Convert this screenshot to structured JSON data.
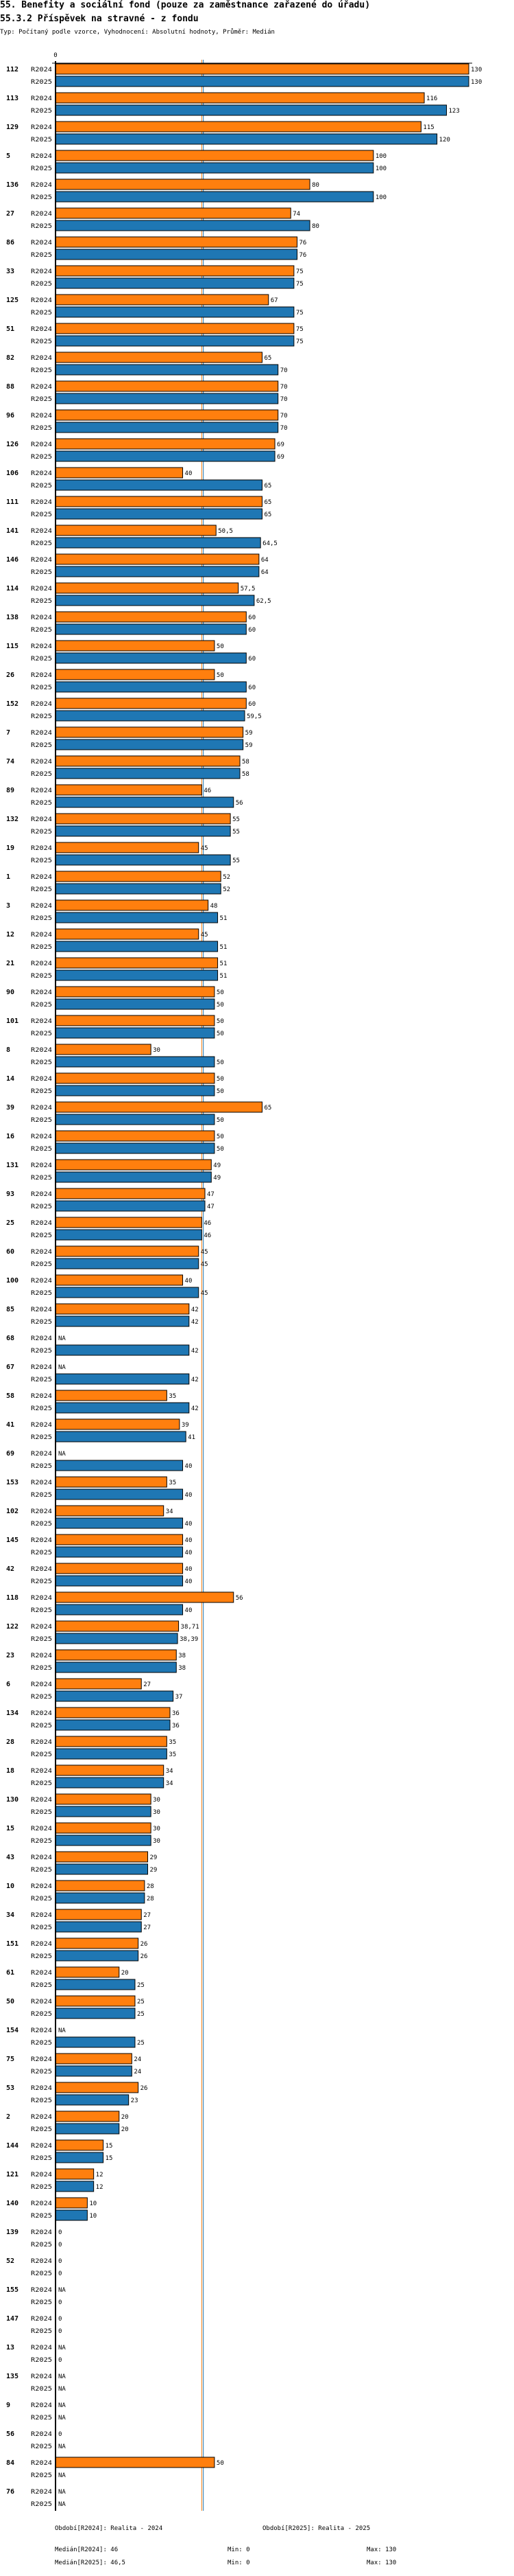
{
  "header": {
    "title": "55. Benefity a sociální fond (pouze za zaměstnance zařazené do úřadu)",
    "subtitle": "55.3.2 Příspěvek na stravné - z fondu",
    "type_line": "Typ: Počítaný podle vzorce, Vyhodnocení: Absolutní hodnoty, Průměr: Medián"
  },
  "chart_data": {
    "type": "bar",
    "orientation": "horizontal",
    "axis_tick_label": "0",
    "xlim": [
      0,
      130
    ],
    "series": [
      {
        "name": "R2024",
        "color": "#ff7f0e",
        "median": 46
      },
      {
        "name": "R2025",
        "color": "#1f77b4",
        "median": 46.5
      }
    ],
    "na_label": "NA",
    "groups": [
      {
        "id": "112",
        "R2024": 130,
        "R2025": 130
      },
      {
        "id": "113",
        "R2024": 116,
        "R2025": 123
      },
      {
        "id": "129",
        "R2024": 115,
        "R2025": 120
      },
      {
        "id": "5",
        "R2024": 100,
        "R2025": 100
      },
      {
        "id": "136",
        "R2024": 80,
        "R2025": 100
      },
      {
        "id": "27",
        "R2024": 74,
        "R2025": 80
      },
      {
        "id": "86",
        "R2024": 76,
        "R2025": 76
      },
      {
        "id": "33",
        "R2024": 75,
        "R2025": 75
      },
      {
        "id": "125",
        "R2024": 67,
        "R2025": 75
      },
      {
        "id": "51",
        "R2024": 75,
        "R2025": 75
      },
      {
        "id": "82",
        "R2024": 65,
        "R2025": 70
      },
      {
        "id": "88",
        "R2024": 70,
        "R2025": 70
      },
      {
        "id": "96",
        "R2024": 70,
        "R2025": 70
      },
      {
        "id": "126",
        "R2024": 69,
        "R2025": 69
      },
      {
        "id": "106",
        "R2024": 40,
        "R2025": 65
      },
      {
        "id": "111",
        "R2024": 65,
        "R2025": 65
      },
      {
        "id": "141",
        "R2024": 50.5,
        "R2025": 64.5
      },
      {
        "id": "146",
        "R2024": 64,
        "R2025": 64
      },
      {
        "id": "114",
        "R2024": 57.5,
        "R2025": 62.5
      },
      {
        "id": "138",
        "R2024": 60,
        "R2025": 60
      },
      {
        "id": "115",
        "R2024": 50,
        "R2025": 60
      },
      {
        "id": "26",
        "R2024": 50,
        "R2025": 60
      },
      {
        "id": "152",
        "R2024": 60,
        "R2025": 59.5
      },
      {
        "id": "7",
        "R2024": 59,
        "R2025": 59
      },
      {
        "id": "74",
        "R2024": 58,
        "R2025": 58
      },
      {
        "id": "89",
        "R2024": 46,
        "R2025": 56
      },
      {
        "id": "132",
        "R2024": 55,
        "R2025": 55
      },
      {
        "id": "19",
        "R2024": 45,
        "R2025": 55
      },
      {
        "id": "1",
        "R2024": 52,
        "R2025": 52
      },
      {
        "id": "3",
        "R2024": 48,
        "R2025": 51
      },
      {
        "id": "12",
        "R2024": 45,
        "R2025": 51
      },
      {
        "id": "21",
        "R2024": 51,
        "R2025": 51
      },
      {
        "id": "90",
        "R2024": 50,
        "R2025": 50
      },
      {
        "id": "101",
        "R2024": 50,
        "R2025": 50
      },
      {
        "id": "8",
        "R2024": 30,
        "R2025": 50
      },
      {
        "id": "14",
        "R2024": 50,
        "R2025": 50
      },
      {
        "id": "39",
        "R2024": 65,
        "R2025": 50
      },
      {
        "id": "16",
        "R2024": 50,
        "R2025": 50
      },
      {
        "id": "131",
        "R2024": 49,
        "R2025": 49
      },
      {
        "id": "93",
        "R2024": 47,
        "R2025": 47
      },
      {
        "id": "25",
        "R2024": 46,
        "R2025": 46
      },
      {
        "id": "60",
        "R2024": 45,
        "R2025": 45
      },
      {
        "id": "100",
        "R2024": 40,
        "R2025": 45
      },
      {
        "id": "85",
        "R2024": 42,
        "R2025": 42
      },
      {
        "id": "68",
        "R2024": null,
        "R2025": 42
      },
      {
        "id": "67",
        "R2024": null,
        "R2025": 42
      },
      {
        "id": "58",
        "R2024": 35,
        "R2025": 42
      },
      {
        "id": "41",
        "R2024": 39,
        "R2025": 41
      },
      {
        "id": "69",
        "R2024": null,
        "R2025": 40
      },
      {
        "id": "153",
        "R2024": 35,
        "R2025": 40
      },
      {
        "id": "102",
        "R2024": 34,
        "R2025": 40
      },
      {
        "id": "145",
        "R2024": 40,
        "R2025": 40
      },
      {
        "id": "42",
        "R2024": 40,
        "R2025": 40
      },
      {
        "id": "118",
        "R2024": 56,
        "R2025": 40
      },
      {
        "id": "122",
        "R2024": 38.71,
        "R2025": 38.39
      },
      {
        "id": "23",
        "R2024": 38,
        "R2025": 38
      },
      {
        "id": "6",
        "R2024": 27,
        "R2025": 37
      },
      {
        "id": "134",
        "R2024": 36,
        "R2025": 36
      },
      {
        "id": "28",
        "R2024": 35,
        "R2025": 35
      },
      {
        "id": "18",
        "R2024": 34,
        "R2025": 34
      },
      {
        "id": "130",
        "R2024": 30,
        "R2025": 30
      },
      {
        "id": "15",
        "R2024": 30,
        "R2025": 30
      },
      {
        "id": "43",
        "R2024": 29,
        "R2025": 29
      },
      {
        "id": "10",
        "R2024": 28,
        "R2025": 28
      },
      {
        "id": "34",
        "R2024": 27,
        "R2025": 27
      },
      {
        "id": "151",
        "R2024": 26,
        "R2025": 26
      },
      {
        "id": "61",
        "R2024": 20,
        "R2025": 25
      },
      {
        "id": "50",
        "R2024": 25,
        "R2025": 25
      },
      {
        "id": "154",
        "R2024": null,
        "R2025": 25
      },
      {
        "id": "75",
        "R2024": 24,
        "R2025": 24
      },
      {
        "id": "53",
        "R2024": 26,
        "R2025": 23
      },
      {
        "id": "2",
        "R2024": 20,
        "R2025": 20
      },
      {
        "id": "144",
        "R2024": 15,
        "R2025": 15
      },
      {
        "id": "121",
        "R2024": 12,
        "R2025": 12
      },
      {
        "id": "140",
        "R2024": 10,
        "R2025": 10
      },
      {
        "id": "139",
        "R2024": 0,
        "R2025": 0
      },
      {
        "id": "52",
        "R2024": 0,
        "R2025": 0
      },
      {
        "id": "155",
        "R2024": null,
        "R2025": 0
      },
      {
        "id": "147",
        "R2024": 0,
        "R2025": 0
      },
      {
        "id": "13",
        "R2024": null,
        "R2025": 0
      },
      {
        "id": "135",
        "R2024": null,
        "R2025": null
      },
      {
        "id": "9",
        "R2024": null,
        "R2025": null
      },
      {
        "id": "56",
        "R2024": 0,
        "R2025": null
      },
      {
        "id": "84",
        "R2024": 50,
        "R2025": null
      },
      {
        "id": "76",
        "R2024": null,
        "R2025": null
      }
    ]
  },
  "footer": {
    "period_2024": "Období[R2024]: Realita - 2024",
    "period_2025": "Období[R2025]: Realita - 2025",
    "median_2024": "Medián[R2024]: 46",
    "median_2025": "Medián[R2025]: 46,5",
    "min_2024": "Min: 0",
    "min_2025": "Min: 0",
    "max_2024": "Max: 130",
    "max_2025": "Max: 130"
  }
}
